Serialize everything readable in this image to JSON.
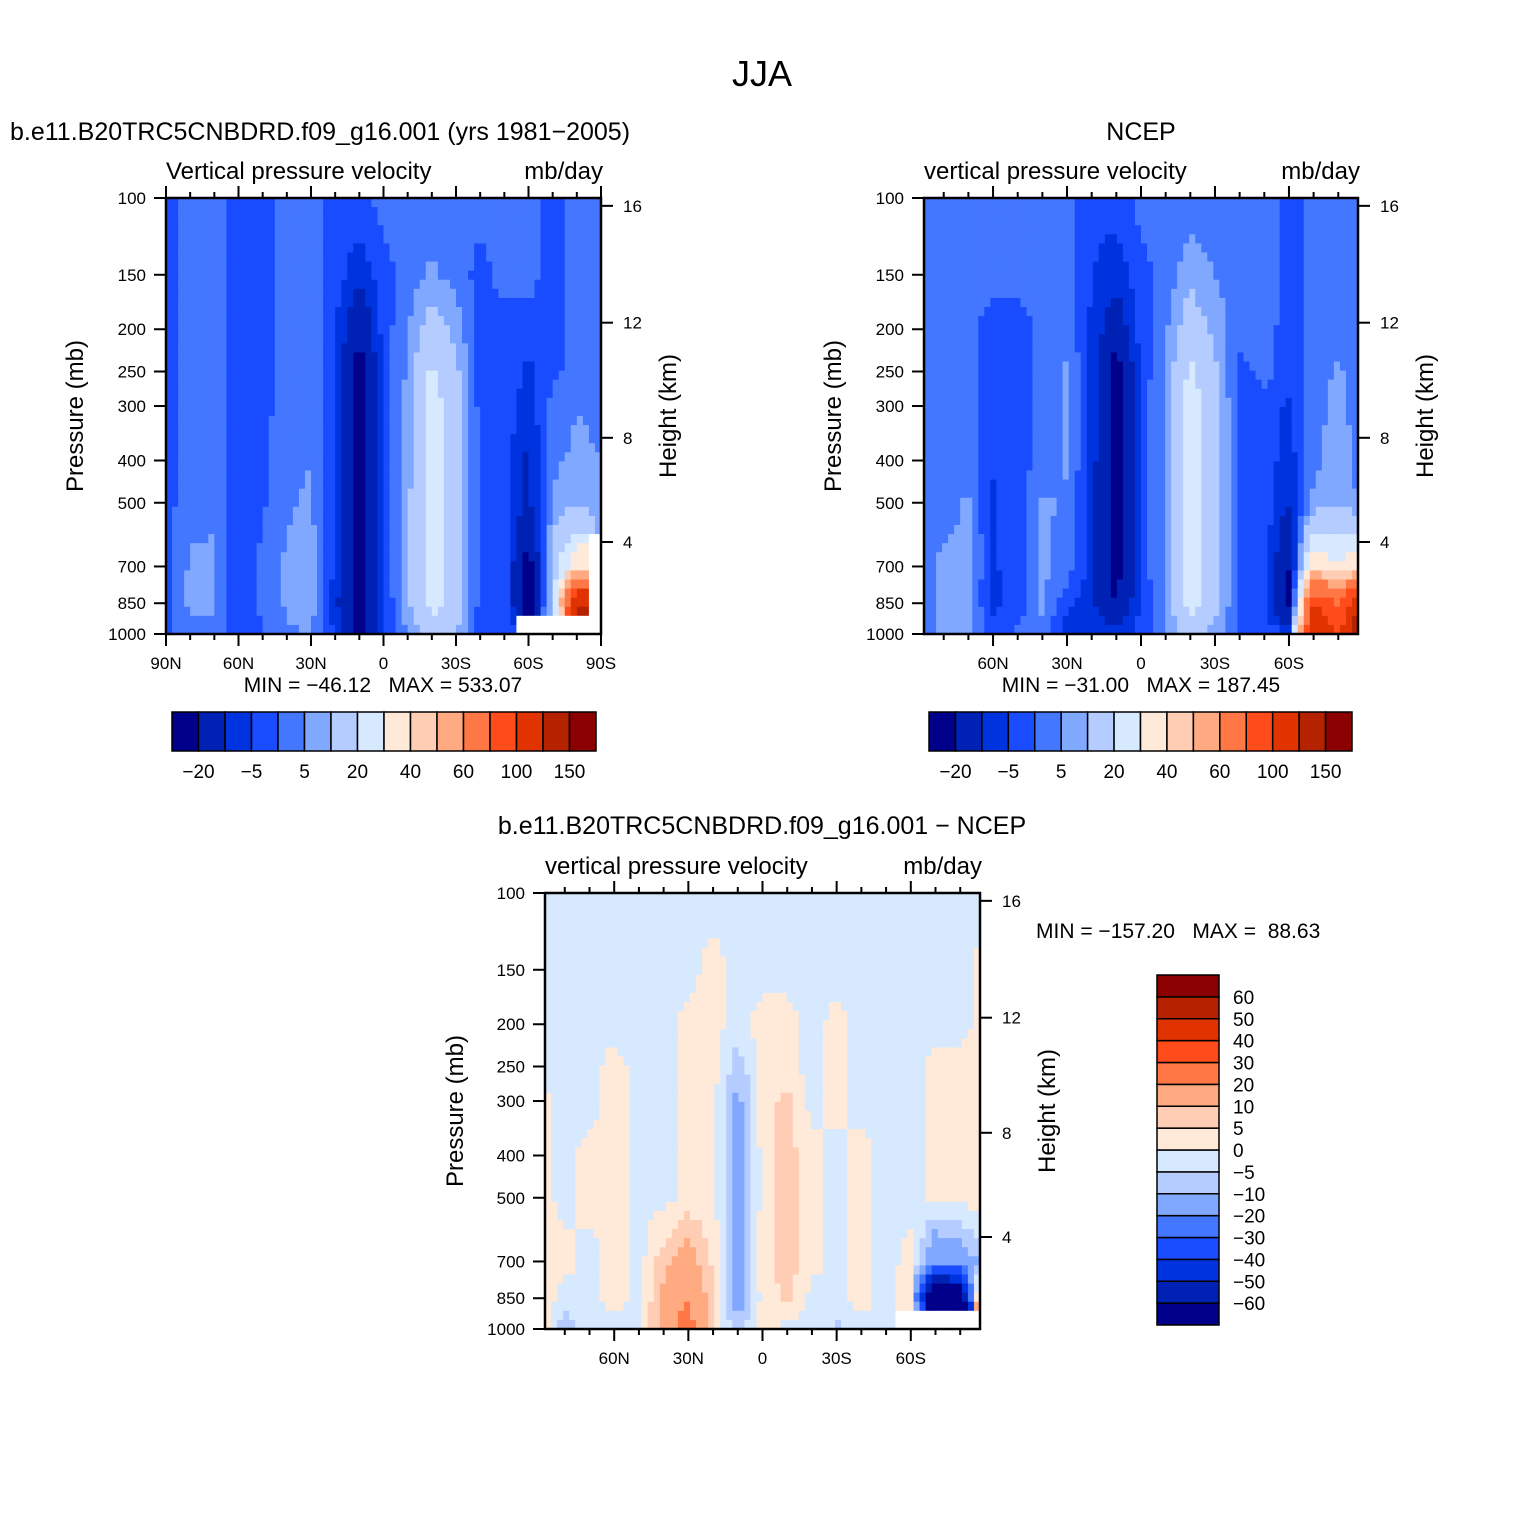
{
  "figure_title": "JJA",
  "chart_data": [
    {
      "type": "heatmap",
      "title": "b.e11.B20TRC5CNBDRD.f09_g16.001 (yrs 1981−2005)",
      "subtitle_left": "Vertical pressure velocity",
      "subtitle_right": "mb/day",
      "ylabel": "Pressure (mb)",
      "y2label": "Height (km)",
      "min_max": "MIN = −46.12   MAX = 533.07",
      "x": [
        90,
        80,
        70,
        60,
        50,
        40,
        30,
        20,
        10,
        0,
        -10,
        -20,
        -30,
        -40,
        -50,
        -60,
        -70,
        -80,
        -90
      ],
      "y": [
        100,
        150,
        200,
        250,
        300,
        400,
        500,
        700,
        850,
        1000
      ],
      "y_scale": "log",
      "xlim": [
        90,
        -90
      ],
      "ylim": [
        100,
        1000
      ],
      "xticks": [
        {
          "v": 90,
          "label": "90N"
        },
        {
          "v": 60,
          "label": "60N"
        },
        {
          "v": 30,
          "label": "30N"
        },
        {
          "v": 0,
          "label": "0"
        },
        {
          "v": -30,
          "label": "30S"
        },
        {
          "v": -60,
          "label": "60S"
        },
        {
          "v": -90,
          "label": "90S"
        }
      ],
      "yticks": [
        "100",
        "150",
        "200",
        "250",
        "300",
        "400",
        "500",
        "700",
        "850",
        "1000"
      ],
      "y2ticks": [
        "16",
        "12",
        "8",
        "4"
      ],
      "z": [
        [
          -2,
          2,
          2,
          -2,
          -2,
          2,
          2,
          -2,
          -2,
          2,
          2,
          2,
          2,
          2,
          2,
          2,
          -2,
          2,
          2
        ],
        [
          -2,
          2,
          2,
          -2,
          -2,
          2,
          3,
          -3,
          -8,
          -2,
          2,
          6,
          3,
          -2,
          2,
          2,
          -2,
          2,
          2
        ],
        [
          -2,
          2,
          2,
          -2,
          -2,
          2,
          3,
          -4,
          -18,
          -3,
          5,
          14,
          8,
          -2,
          -2,
          -3,
          -2,
          3,
          3
        ],
        [
          -2,
          2,
          2,
          -2,
          -2,
          2,
          3,
          -4,
          -25,
          -3,
          6,
          22,
          12,
          -2,
          -2,
          -6,
          -2,
          3,
          3
        ],
        [
          -2,
          2,
          2,
          -2,
          -2,
          3,
          4,
          -5,
          -25,
          -3,
          7,
          25,
          14,
          -2,
          -2,
          -8,
          2,
          5,
          4
        ],
        [
          -2,
          2,
          2,
          -2,
          -1,
          3,
          5,
          -5,
          -25,
          -3,
          7,
          25,
          15,
          -2,
          -2,
          -12,
          4,
          6,
          5
        ],
        [
          -2,
          3,
          4,
          -5,
          -1,
          4,
          6,
          -6,
          -25,
          -3,
          8,
          26,
          15,
          -2,
          -2,
          -12,
          6,
          8,
          6
        ],
        [
          -2,
          6,
          6,
          -6,
          2,
          6,
          8,
          -6,
          -25,
          -3,
          8,
          26,
          15,
          -2,
          -2,
          -25,
          12,
          40,
          null
        ],
        [
          -2,
          6,
          6,
          -6,
          2,
          6,
          8,
          -8,
          -25,
          -5,
          8,
          25,
          15,
          -2,
          -2,
          -25,
          12,
          120,
          null
        ],
        [
          -2,
          3,
          3,
          -4,
          -1,
          4,
          5,
          -6,
          -22,
          -4,
          6,
          12,
          10,
          -2,
          -2,
          null,
          null,
          null,
          null
        ]
      ],
      "colorbar": {
        "orientation": "horizontal",
        "levels": [
          -20,
          -10,
          -5,
          0,
          5,
          10,
          20,
          30,
          40,
          50,
          60,
          80,
          100,
          120,
          150
        ],
        "labels": [
          "−20",
          "−5",
          "5",
          "20",
          "40",
          "60",
          "100",
          "150"
        ],
        "colors": [
          "#00008b",
          "#0022b4",
          "#0033e0",
          "#1a4cff",
          "#4477ff",
          "#80a8ff",
          "#b4ccff",
          "#d7e9ff",
          "#ffe9d8",
          "#ffccb4",
          "#ffaa80",
          "#ff7744",
          "#ff4c1a",
          "#e03300",
          "#b42200",
          "#8b0000"
        ]
      }
    },
    {
      "type": "heatmap",
      "title": "NCEP",
      "subtitle_left": "vertical pressure velocity",
      "subtitle_right": "mb/day",
      "ylabel": "Pressure (mb)",
      "y2label": "Height (km)",
      "min_max": "MIN = −31.00   MAX = 187.45",
      "x": [
        90,
        80,
        70,
        60,
        50,
        40,
        30,
        20,
        10,
        0,
        -10,
        -20,
        -30,
        -40,
        -50,
        -60,
        -70,
        -80,
        -90
      ],
      "y": [
        100,
        150,
        200,
        250,
        300,
        400,
        500,
        700,
        850,
        1000
      ],
      "y_scale": "log",
      "xlim": [
        88,
        -88
      ],
      "ylim": [
        100,
        1000
      ],
      "xticks": [
        {
          "v": 60,
          "label": "60N"
        },
        {
          "v": 30,
          "label": "30N"
        },
        {
          "v": 0,
          "label": "0"
        },
        {
          "v": -30,
          "label": "30S"
        },
        {
          "v": -60,
          "label": "60S"
        }
      ],
      "yticks": [
        "100",
        "150",
        "200",
        "250",
        "300",
        "400",
        "500",
        "700",
        "850",
        "1000"
      ],
      "y2ticks": [
        "16",
        "12",
        "8",
        "4"
      ],
      "z": [
        [
          2,
          2,
          2,
          2,
          2,
          2,
          2,
          -3,
          -3,
          2,
          2,
          2,
          2,
          2,
          2,
          -2,
          2,
          2,
          2
        ],
        [
          2,
          2,
          2,
          2,
          2,
          2,
          2,
          -5,
          -8,
          -2,
          2,
          8,
          5,
          2,
          2,
          -2,
          2,
          2,
          2
        ],
        [
          2,
          2,
          2,
          -3,
          -3,
          2,
          2,
          -6,
          -15,
          -3,
          4,
          15,
          8,
          2,
          2,
          -2,
          2,
          3,
          2
        ],
        [
          2,
          2,
          2,
          -3,
          -3,
          2,
          6,
          -6,
          -25,
          -3,
          5,
          22,
          12,
          -2,
          2,
          -3,
          2,
          6,
          2
        ],
        [
          2,
          2,
          2,
          -3,
          -3,
          2,
          6,
          -7,
          -25,
          -3,
          6,
          25,
          14,
          -2,
          -2,
          -6,
          3,
          7,
          2
        ],
        [
          2,
          2,
          2,
          -4,
          -3,
          2,
          6,
          -7,
          -25,
          -3,
          6,
          25,
          15,
          -2,
          -2,
          -8,
          4,
          7,
          3
        ],
        [
          2,
          2,
          6,
          -6,
          -2,
          6,
          4,
          -8,
          -25,
          -3,
          6,
          26,
          15,
          -2,
          -2,
          -10,
          6,
          8,
          4
        ],
        [
          2,
          7,
          7,
          -6,
          -2,
          6,
          3,
          -8,
          -25,
          -3,
          6,
          26,
          15,
          -2,
          -2,
          -20,
          40,
          30,
          40
        ],
        [
          2,
          7,
          6,
          -6,
          -3,
          6,
          -4,
          -8,
          -20,
          -4,
          6,
          25,
          14,
          -2,
          -2,
          -25,
          100,
          80,
          120
        ],
        [
          2,
          6,
          6,
          -4,
          2,
          4,
          -8,
          -7,
          -8,
          -3,
          5,
          12,
          8,
          -2,
          -2,
          -5,
          120,
          100,
          150
        ]
      ],
      "colorbar": {
        "orientation": "horizontal",
        "levels": [
          -20,
          -10,
          -5,
          0,
          5,
          10,
          20,
          30,
          40,
          50,
          60,
          80,
          100,
          120,
          150
        ],
        "labels": [
          "−20",
          "−5",
          "5",
          "20",
          "40",
          "60",
          "100",
          "150"
        ],
        "colors": [
          "#00008b",
          "#0022b4",
          "#0033e0",
          "#1a4cff",
          "#4477ff",
          "#80a8ff",
          "#b4ccff",
          "#d7e9ff",
          "#ffe9d8",
          "#ffccb4",
          "#ffaa80",
          "#ff7744",
          "#ff4c1a",
          "#e03300",
          "#b42200",
          "#8b0000"
        ]
      }
    },
    {
      "type": "heatmap",
      "title": "b.e11.B20TRC5CNBDRD.f09_g16.001 − NCEP",
      "subtitle_left": "vertical pressure velocity",
      "subtitle_right": "mb/day",
      "ylabel": "Pressure (mb)",
      "y2label": "Height (km)",
      "min_max": "MIN = −157.20   MAX =  88.63",
      "x": [
        90,
        80,
        70,
        60,
        50,
        40,
        30,
        20,
        10,
        0,
        -10,
        -20,
        -30,
        -40,
        -50,
        -60,
        -70,
        -80,
        -90
      ],
      "y": [
        100,
        150,
        200,
        250,
        300,
        400,
        500,
        700,
        850,
        1000
      ],
      "y_scale": "log",
      "xlim": [
        88,
        -88
      ],
      "ylim": [
        100,
        1000
      ],
      "xticks": [
        {
          "v": 60,
          "label": "60N"
        },
        {
          "v": 30,
          "label": "30N"
        },
        {
          "v": 0,
          "label": "0"
        },
        {
          "v": -30,
          "label": "30S"
        },
        {
          "v": -60,
          "label": "60S"
        }
      ],
      "yticks": [
        "100",
        "150",
        "200",
        "250",
        "300",
        "400",
        "500",
        "700",
        "850",
        "1000"
      ],
      "y2ticks": [
        "16",
        "12",
        "8",
        "4"
      ],
      "z": [
        [
          -2,
          -2,
          -2,
          -2,
          -2,
          -2,
          -2,
          -2,
          -2,
          -2,
          -2,
          -2,
          -2,
          -2,
          -2,
          -2,
          -2,
          -2,
          -2
        ],
        [
          -2,
          -2,
          -2,
          -2,
          -2,
          -2,
          -2,
          2,
          -2,
          -2,
          -2,
          -2,
          -2,
          -2,
          -2,
          -2,
          -2,
          -2,
          2
        ],
        [
          -2,
          -2,
          -2,
          -2,
          -2,
          -2,
          2,
          2,
          -2,
          2,
          2,
          -2,
          2,
          -2,
          -2,
          -2,
          -2,
          -2,
          2
        ],
        [
          -2,
          -2,
          -2,
          2,
          -2,
          -2,
          2,
          2,
          -8,
          2,
          2,
          -2,
          2,
          -2,
          -2,
          -2,
          2,
          2,
          2
        ],
        [
          2,
          -2,
          -2,
          2,
          -2,
          -2,
          2,
          2,
          -12,
          2,
          7,
          -2,
          2,
          -2,
          -2,
          -2,
          2,
          2,
          2
        ],
        [
          2,
          -2,
          2,
          2,
          -2,
          -2,
          2,
          2,
          -15,
          2,
          7,
          2,
          -2,
          2,
          -2,
          -2,
          2,
          2,
          2
        ],
        [
          2,
          -2,
          2,
          2,
          -2,
          -2,
          2,
          2,
          -15,
          2,
          7,
          2,
          -2,
          2,
          -2,
          -2,
          2,
          2,
          2
        ],
        [
          2,
          2,
          -2,
          2,
          -2,
          8,
          14,
          4,
          -12,
          2,
          8,
          2,
          -2,
          2,
          -2,
          2,
          -20,
          -15,
          -8
        ],
        [
          4,
          -2,
          -2,
          2,
          -2,
          12,
          20,
          6,
          -15,
          2,
          6,
          -2,
          -2,
          2,
          -2,
          2,
          -100,
          -80,
          40
        ],
        [
          4,
          -8,
          -2,
          -2,
          -2,
          15,
          25,
          6,
          -8,
          4,
          -2,
          -2,
          -6,
          -2,
          -2,
          null,
          null,
          null,
          null
        ]
      ],
      "colorbar": {
        "orientation": "vertical",
        "levels": [
          -60,
          -50,
          -40,
          -30,
          -20,
          -10,
          -5,
          0,
          5,
          10,
          20,
          30,
          40,
          50,
          60
        ],
        "labels": [
          "60",
          "50",
          "40",
          "30",
          "20",
          "10",
          "5",
          "0",
          "−5",
          "−10",
          "−20",
          "−30",
          "−40",
          "−50",
          "−60"
        ],
        "colors": [
          "#00008b",
          "#0022b4",
          "#0033e0",
          "#1a4cff",
          "#4477ff",
          "#80a8ff",
          "#b4ccff",
          "#d7e9ff",
          "#ffe9d8",
          "#ffccb4",
          "#ffaa80",
          "#ff7744",
          "#ff4c1a",
          "#e03300",
          "#b42200",
          "#8b0000"
        ]
      }
    }
  ]
}
